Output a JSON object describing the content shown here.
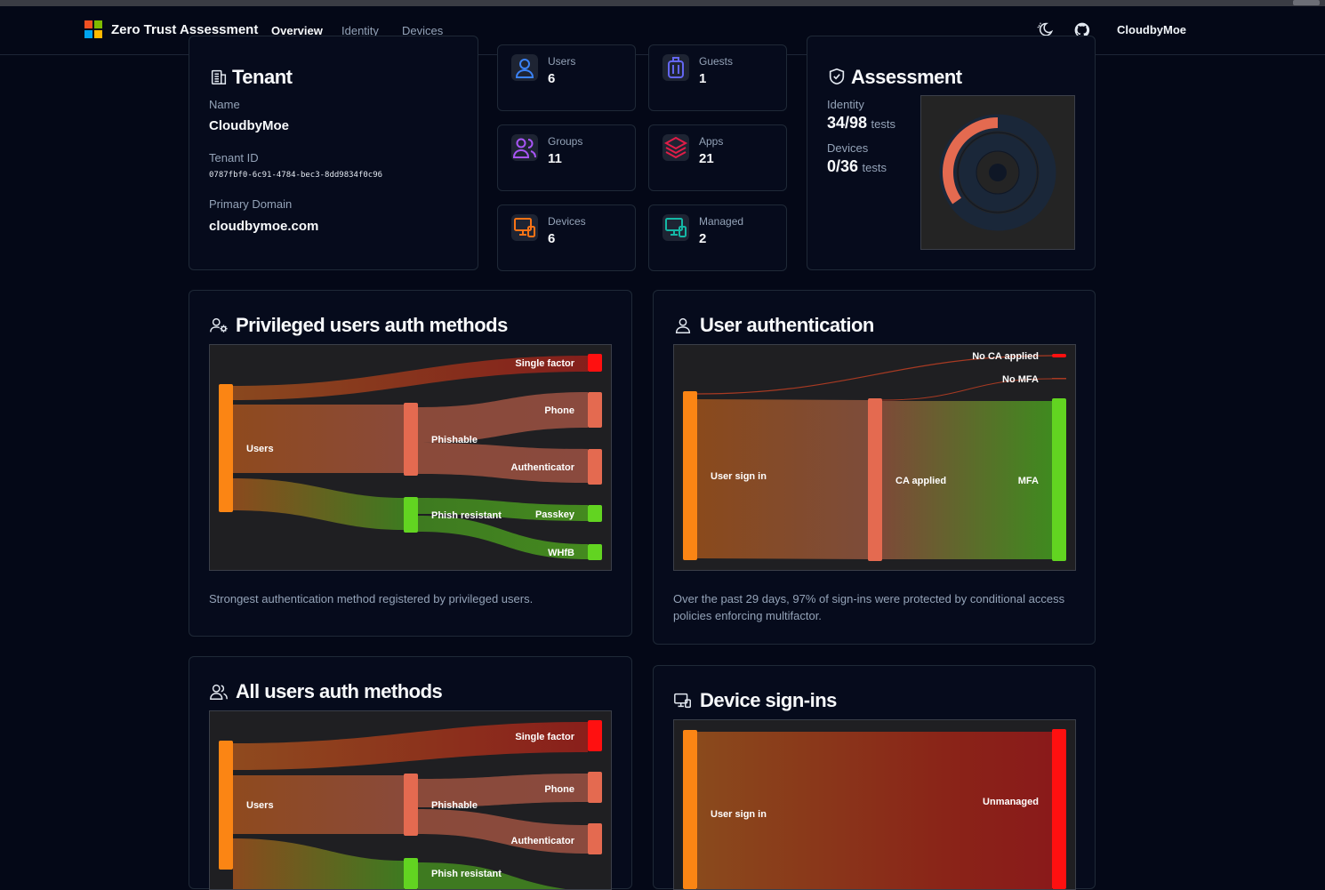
{
  "app": {
    "title": "Zero Trust Assessment",
    "nav": [
      "Overview",
      "Identity",
      "Devices"
    ],
    "user": "CloudbyMoe",
    "icons": [
      "theme-toggle-icon",
      "github-icon"
    ]
  },
  "tenant": {
    "title": "Tenant",
    "name_label": "Name",
    "name": "CloudbyMoe",
    "id_label": "Tenant ID",
    "id": "0787fbf0-6c91-4784-bec3-8dd9834f0c96",
    "domain_label": "Primary Domain",
    "domain": "cloudbymoe.com"
  },
  "stats": [
    {
      "label": "Users",
      "value": "6",
      "icon": "user-icon",
      "color": "#3b82f6"
    },
    {
      "label": "Guests",
      "value": "1",
      "icon": "luggage-icon",
      "color": "#6366f1"
    },
    {
      "label": "Groups",
      "value": "11",
      "icon": "users-icon",
      "color": "#a855f7"
    },
    {
      "label": "Apps",
      "value": "21",
      "icon": "layers-icon",
      "color": "#e11d48"
    },
    {
      "label": "Devices",
      "value": "6",
      "icon": "devices-icon",
      "color": "#f97316"
    },
    {
      "label": "Managed",
      "value": "2",
      "icon": "managed-devices-icon",
      "color": "#14b8a6"
    }
  ],
  "assessment": {
    "title": "Assessment",
    "identity_label": "Identity",
    "identity_value": "34/98",
    "identity_unit": "tests",
    "identity_passed": 34,
    "identity_total": 98,
    "devices_label": "Devices",
    "devices_value": "0/36",
    "devices_unit": "tests",
    "devices_passed": 0,
    "devices_total": 36
  },
  "privileged": {
    "title": "Privileged users auth methods",
    "caption": "Strongest authentication method registered by privileged users.",
    "labels": {
      "users": "Users",
      "phishable": "Phishable",
      "phish_resistant": "Phish resistant",
      "single_factor": "Single factor",
      "phone": "Phone",
      "authenticator": "Authenticator",
      "passkey": "Passkey",
      "whfb": "WHfB"
    }
  },
  "user_auth": {
    "title": "User authentication",
    "caption": "Over the past 29 days, 97% of sign-ins were protected by conditional access policies enforcing multifactor.",
    "labels": {
      "user_sign_in": "User sign in",
      "ca_applied": "CA applied",
      "mfa": "MFA",
      "no_ca": "No CA applied",
      "no_mfa": "No MFA"
    }
  },
  "all_users": {
    "title": "All users auth methods",
    "labels": {
      "users": "Users",
      "phishable": "Phishable",
      "single_factor": "Single factor",
      "phone": "Phone",
      "authenticator": "Authenticator",
      "phish_resistant": "Phish resistant"
    }
  },
  "device_signins": {
    "title": "Device sign-ins",
    "labels": {
      "user_sign_in": "User sign in",
      "unmanaged": "Unmanaged"
    }
  },
  "colors": {
    "orange": "#fb8514",
    "salmon": "#e46a50",
    "red": "#ff1010",
    "green": "#62d421"
  }
}
